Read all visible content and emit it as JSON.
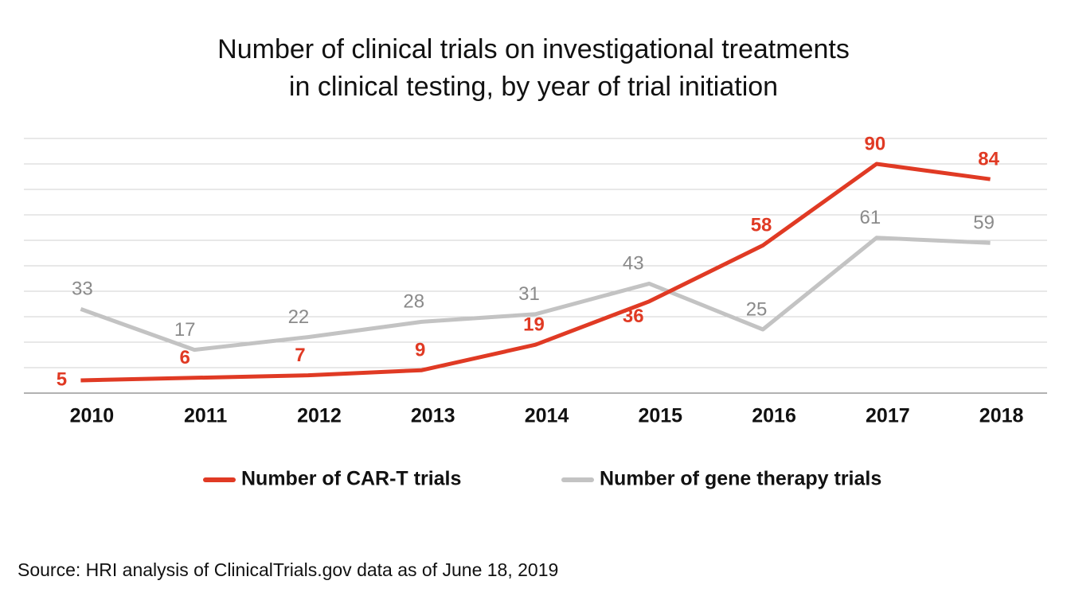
{
  "chart_data": {
    "type": "line",
    "title": [
      "Number of clinical trials on investigational treatments",
      "in clinical testing, by year of trial initiation"
    ],
    "categories": [
      "2010",
      "2011",
      "2012",
      "2013",
      "2014",
      "2015",
      "2016",
      "2017",
      "2018"
    ],
    "series": [
      {
        "name": "Number of CAR-T trials",
        "color": "#e03a24",
        "values": [
          5,
          6,
          7,
          9,
          19,
          36,
          58,
          90,
          84
        ]
      },
      {
        "name": "Number of gene therapy trials",
        "color": "#c3c3c3",
        "values": [
          33,
          17,
          22,
          28,
          31,
          43,
          25,
          61,
          59
        ]
      }
    ],
    "ylim": [
      0,
      100
    ],
    "yticks": [
      0,
      10,
      20,
      30,
      40,
      50,
      60,
      70,
      80,
      90,
      100
    ],
    "grid": true,
    "source": "Source: HRI analysis of ClinicalTrials.gov data as of June 18, 2019"
  }
}
